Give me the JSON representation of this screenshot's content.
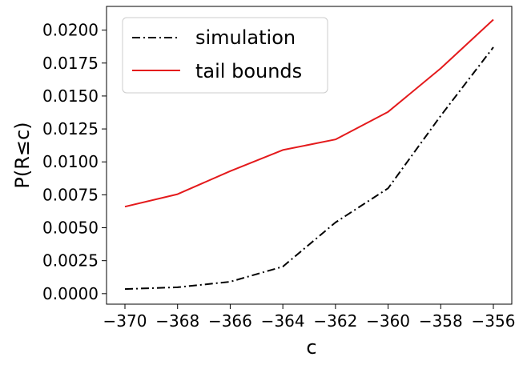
{
  "chart_data": {
    "type": "line",
    "xlabel": "c",
    "ylabel": "P(R≤c)",
    "xlim": [
      -370.7,
      -355.3
    ],
    "ylim": [
      -0.0008,
      0.0218
    ],
    "x_ticks": [
      -370,
      -368,
      -366,
      -364,
      -362,
      -360,
      -358,
      -356
    ],
    "x_tick_labels": [
      "−370",
      "−368",
      "−366",
      "−364",
      "−362",
      "−360",
      "−358",
      "−356"
    ],
    "y_ticks": [
      0.0,
      0.0025,
      0.005,
      0.0075,
      0.01,
      0.0125,
      0.015,
      0.0175,
      0.02
    ],
    "y_tick_labels": [
      "0.0000",
      "0.0025",
      "0.0050",
      "0.0075",
      "0.0100",
      "0.0125",
      "0.0150",
      "0.0175",
      "0.0200"
    ],
    "grid": false,
    "legend_position": "top-left",
    "x": [
      -370,
      -368,
      -366,
      -364,
      -362,
      -360,
      -358,
      -356
    ],
    "series": [
      {
        "name": "simulation",
        "color": "#000000",
        "line_style": "dashdot",
        "values": [
          0.00035,
          0.00048,
          0.0009,
          0.00205,
          0.0054,
          0.008,
          0.0135,
          0.0187
        ]
      },
      {
        "name": "tail bounds",
        "color": "#e41a1c",
        "line_style": "solid",
        "values": [
          0.0066,
          0.00755,
          0.0093,
          0.0109,
          0.0117,
          0.0138,
          0.0171,
          0.0208
        ]
      }
    ]
  }
}
